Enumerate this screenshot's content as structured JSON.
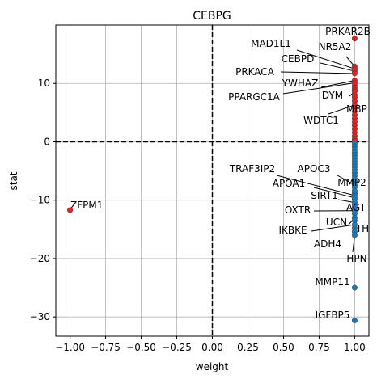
{
  "chart_data": {
    "type": "scatter",
    "title": "CEBPG",
    "xlabel": "weight",
    "ylabel": "stat",
    "xlim": [
      -1.1,
      1.1
    ],
    "ylim": [
      -33.3,
      20.0
    ],
    "xticks": [
      -1.0,
      -0.75,
      -0.5,
      -0.25,
      0.0,
      0.25,
      0.5,
      0.75,
      1.0
    ],
    "xtick_labels": [
      "−1.00",
      "−0.75",
      "−0.50",
      "−0.25",
      "0.00",
      "0.25",
      "0.50",
      "0.75",
      "1.00"
    ],
    "yticks": [
      -30,
      -20,
      -10,
      0,
      10
    ],
    "ytick_labels": [
      "−30",
      "−20",
      "−10",
      "0",
      "10"
    ],
    "grid": true,
    "reference_lines": {
      "x": 0,
      "y": 0,
      "style": "dashed"
    },
    "colors": {
      "positive": "#d62728",
      "negative": "#1f77b4"
    },
    "labeled_points": [
      {
        "label": "PRKAR2B",
        "x": 1.0,
        "y": 17.7,
        "color": "#d62728"
      },
      {
        "label": "NR5A2",
        "x": 1.0,
        "y": 12.9,
        "color": "#d62728"
      },
      {
        "label": "MAD1L1",
        "x": 1.0,
        "y": 12.5,
        "color": "#d62728"
      },
      {
        "label": "CEBPD",
        "x": 1.0,
        "y": 12.1,
        "color": "#d62728"
      },
      {
        "label": "PRKACA",
        "x": 1.0,
        "y": 11.7,
        "color": "#d62728"
      },
      {
        "label": "YWHAZ",
        "x": 1.0,
        "y": 10.5,
        "color": "#d62728"
      },
      {
        "label": "PPARGC1A",
        "x": 1.0,
        "y": 10.1,
        "color": "#d62728"
      },
      {
        "label": "DYM",
        "x": 1.0,
        "y": 8.6,
        "color": "#d62728"
      },
      {
        "label": "MBP",
        "x": 1.0,
        "y": 7.0,
        "color": "#d62728"
      },
      {
        "label": "WDTC1",
        "x": 1.0,
        "y": 6.3,
        "color": "#d62728"
      },
      {
        "label": "ZFPM1",
        "x": -1.0,
        "y": -11.7,
        "color": "#d62728"
      },
      {
        "label": "TRAF3IP2",
        "x": 1.0,
        "y": -9.2,
        "color": "#1f77b4"
      },
      {
        "label": "APOC3",
        "x": 1.0,
        "y": -7.4,
        "color": "#1f77b4"
      },
      {
        "label": "MMP2",
        "x": 1.0,
        "y": -8.4,
        "color": "#1f77b4"
      },
      {
        "label": "APOA1",
        "x": 1.0,
        "y": -9.6,
        "color": "#1f77b4"
      },
      {
        "label": "SIRT1",
        "x": 1.0,
        "y": -10.4,
        "color": "#1f77b4"
      },
      {
        "label": "AGT",
        "x": 1.0,
        "y": -10.9,
        "color": "#1f77b4"
      },
      {
        "label": "OXTR",
        "x": 1.0,
        "y": -11.8,
        "color": "#1f77b4"
      },
      {
        "label": "UCN",
        "x": 1.0,
        "y": -13.0,
        "color": "#1f77b4"
      },
      {
        "label": "TH",
        "x": 1.0,
        "y": -13.5,
        "color": "#1f77b4"
      },
      {
        "label": "IKBKE",
        "x": 1.0,
        "y": -14.2,
        "color": "#1f77b4"
      },
      {
        "label": "ADH4",
        "x": 1.0,
        "y": -15.4,
        "color": "#1f77b4"
      },
      {
        "label": "HPN",
        "x": 1.0,
        "y": -16.0,
        "color": "#1f77b4"
      },
      {
        "label": "MMP11",
        "x": 1.0,
        "y": -25.0,
        "color": "#1f77b4"
      },
      {
        "label": "IGFBP5",
        "x": 1.0,
        "y": -30.6,
        "color": "#1f77b4"
      }
    ],
    "unlabeled_points": {
      "x": 1.0,
      "y": [
        9.6,
        9.2,
        8.8,
        8.0,
        7.6,
        5.8,
        5.2,
        4.6,
        4.0,
        3.4,
        2.8,
        2.2,
        1.6,
        1.0,
        0.5,
        0.15,
        -0.3,
        -0.8,
        -1.3,
        -1.8,
        -2.3,
        -2.8,
        -3.3,
        -3.8,
        -4.3,
        -4.8,
        -5.3,
        -5.8,
        -6.3,
        -6.8,
        -7.8,
        -8.8,
        -9.9,
        -11.3,
        -12.3,
        -14.8
      ]
    }
  }
}
